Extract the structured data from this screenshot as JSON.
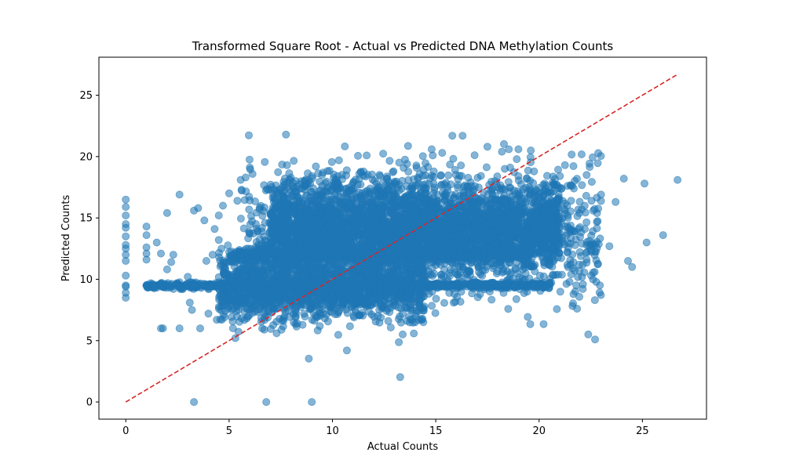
{
  "chart_data": {
    "type": "scatter",
    "title": "Transformed Square Root - Actual vs Predicted DNA Methylation Counts",
    "xlabel": "Actual Counts",
    "ylabel": "Predicted Counts",
    "xlim": [
      -1.3,
      28.1
    ],
    "ylim": [
      -1.4,
      28.1
    ],
    "xticks": [
      0,
      5,
      10,
      15,
      20,
      25
    ],
    "yticks": [
      0,
      5,
      10,
      15,
      20,
      25
    ],
    "grid": false,
    "colors": {
      "points": "#1f77b4",
      "reference_line": "#d62728"
    },
    "point_alpha": 0.55,
    "reference_line": {
      "style": "dashed",
      "from": [
        0,
        0
      ],
      "to": [
        26.7,
        26.7
      ]
    },
    "series": [
      {
        "x": [
          0,
          0,
          0,
          0,
          0,
          0,
          0,
          0,
          0,
          0,
          0,
          0,
          0,
          0,
          0,
          1,
          1,
          1,
          1,
          1,
          1,
          1.5,
          1.7,
          1.7,
          1.8,
          2.0,
          2.0,
          2.0,
          2.2,
          2.3,
          2.5,
          2.6,
          2.6,
          3.0,
          3.1,
          3.2,
          3.3,
          3.3,
          3.5,
          3.6,
          3.8,
          3.9,
          4.0,
          4.2,
          4.3,
          4.4,
          4.5,
          4.5,
          4.7,
          4.8,
          4.9,
          5.0,
          5.2,
          5.3,
          5.4,
          5.6,
          5.8,
          6.0,
          6.3,
          6.6,
          6.7,
          6.8,
          7.3,
          7.6,
          7.8,
          8.0,
          8.3,
          8.5,
          8.8,
          9.0,
          9.2,
          9.5,
          9.7,
          10.7,
          11.3,
          12.7,
          13.4,
          14.0,
          14.8,
          15.8,
          16.3,
          17.5,
          18.2,
          18.6,
          19.0,
          19.6,
          20.2,
          20.9,
          21.6,
          21.8,
          22.3,
          22.7,
          23.0,
          23.4,
          23.7,
          24.1,
          24.3,
          24.5,
          25.1,
          25.2,
          26.0,
          26.7
        ],
        "y": [
          16.5,
          15.9,
          15.2,
          14.5,
          14.2,
          13.5,
          12.8,
          12.5,
          12.0,
          11.5,
          10.3,
          9.5,
          9.4,
          8.9,
          8.5,
          14.3,
          13.6,
          12.6,
          12.1,
          11.6,
          9.5,
          13.0,
          6.0,
          12.1,
          6.0,
          15.4,
          10.8,
          9.5,
          11.4,
          12.0,
          9.5,
          16.9,
          6.0,
          10.2,
          8.1,
          7.5,
          15.6,
          0.0,
          15.8,
          6.0,
          14.8,
          11.5,
          7.2,
          12.0,
          14.1,
          6.7,
          15.2,
          13.2,
          16.0,
          10.5,
          8.0,
          17.0,
          11.8,
          5.2,
          16.4,
          17.3,
          18.3,
          19.1,
          14.5,
          6.0,
          5.9,
          0.0,
          5.6,
          17.5,
          19.3,
          16.8,
          6.4,
          18.0,
          17.8,
          0.0,
          19.2,
          18.5,
          15.0,
          4.2,
          18.6,
          6.6,
          5.5,
          6.5,
          20.6,
          21.7,
          21.7,
          20.8,
          20.4,
          19.1,
          20.6,
          20.5,
          17.7,
          12.8,
          17.6,
          9.5,
          18.5,
          8.3,
          16.9,
          12.7,
          16.3,
          18.2,
          11.5,
          11.0,
          17.8,
          13.0,
          13.6,
          18.1
        ]
      }
    ],
    "density_bands": [
      {
        "x_range": [
          1.0,
          20.6
        ],
        "y_center": 9.5,
        "y_spread": 0.12,
        "count": 900
      },
      {
        "x_range": [
          5.0,
          19.5
        ],
        "y_center": 12.0,
        "y_spread": 0.25,
        "count": 750
      },
      {
        "x_range": [
          4.5,
          14.5
        ],
        "y_center": 9.3,
        "y_spread": 1.3,
        "count": 1600
      },
      {
        "x_range": [
          7.0,
          21.0
        ],
        "y_center": 14.4,
        "y_spread": 1.7,
        "count": 3200
      },
      {
        "x_range": [
          5.5,
          23.0
        ],
        "y_center": 13.5,
        "y_spread": 2.7,
        "count": 1300
      }
    ]
  }
}
